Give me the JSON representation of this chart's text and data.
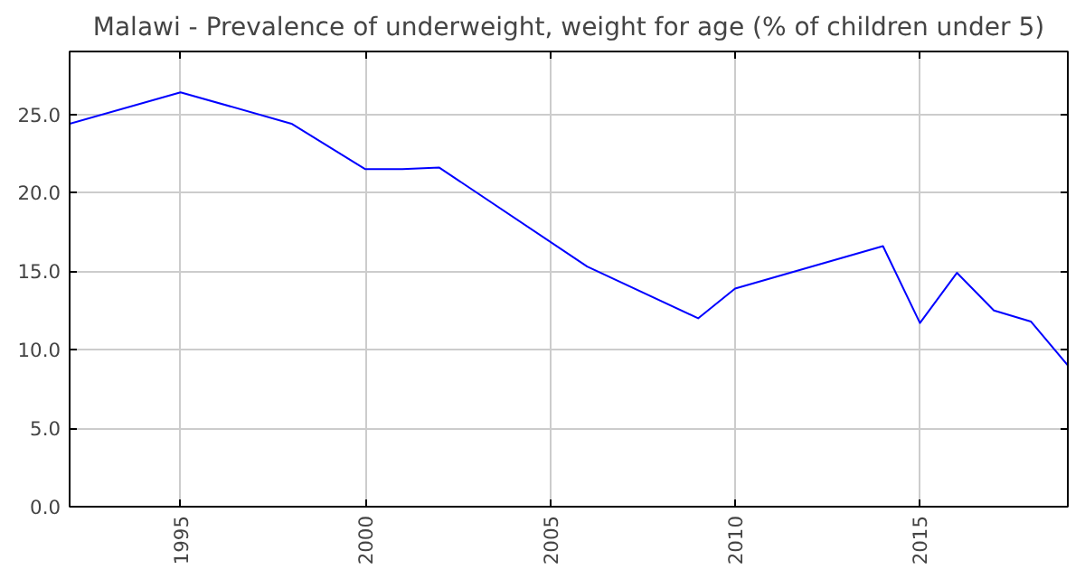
{
  "chart_data": {
    "type": "line",
    "title": "Malawi - Prevalence of underweight, weight for age (% of children under 5)",
    "x": [
      1992,
      1995,
      1998,
      2000,
      2001,
      2002,
      2006,
      2009,
      2010,
      2014,
      2015,
      2016,
      2017,
      2018,
      2019
    ],
    "series": [
      {
        "color": "#0000ff",
        "values": [
          24.4,
          26.4,
          24.4,
          21.5,
          21.5,
          21.6,
          15.3,
          12.0,
          13.9,
          16.6,
          11.7,
          14.9,
          12.5,
          11.8,
          9.0
        ]
      }
    ],
    "xlim": [
      1992,
      2019
    ],
    "ylim": [
      0,
      29
    ],
    "xticks": [
      1995,
      2000,
      2005,
      2010,
      2015
    ],
    "yticks": [
      {
        "value": 0,
        "label": "0.0"
      },
      {
        "value": 5,
        "label": "5.0"
      },
      {
        "value": 10,
        "label": "10.0"
      },
      {
        "value": 15,
        "label": "15.0"
      },
      {
        "value": 20,
        "label": "20.0"
      },
      {
        "value": 25,
        "label": "25.0"
      }
    ],
    "grid": true,
    "marker": "none",
    "line_style": "solid"
  }
}
